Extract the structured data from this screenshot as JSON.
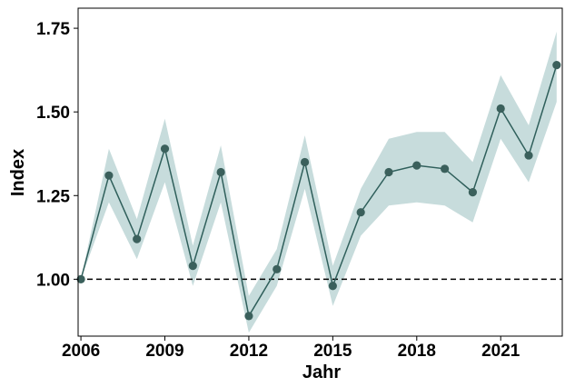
{
  "colors": {
    "line": "#2f5f5b",
    "point": "#3b605c",
    "band": "#c7dcdc",
    "reference_line": "#000000",
    "frame": "#000000",
    "background": "#ffffff"
  },
  "chart_data": {
    "type": "line",
    "xlabel": "Jahr",
    "ylabel": "Index",
    "x_ticks": [
      "2006",
      "2009",
      "2012",
      "2015",
      "2018",
      "2021"
    ],
    "y_ticks": [
      "1.00",
      "1.25",
      "1.50",
      "1.75"
    ],
    "xlim": [
      2005.9,
      2023.2
    ],
    "ylim": [
      0.83,
      1.81
    ],
    "grid": false,
    "reference_line": {
      "y": 1.0,
      "style": "dashed"
    },
    "series": [
      {
        "x": [
          2006,
          2007,
          2008,
          2009,
          2010,
          2011,
          2012,
          2013,
          2014,
          2015,
          2016,
          2017,
          2018,
          2019,
          2020,
          2021,
          2022,
          2023
        ],
        "values": [
          1.0,
          1.31,
          1.12,
          1.39,
          1.04,
          1.32,
          0.89,
          1.03,
          1.35,
          0.98,
          1.2,
          1.32,
          1.34,
          1.33,
          1.26,
          1.51,
          1.37,
          1.64
        ],
        "lower": [
          1.0,
          1.23,
          1.06,
          1.29,
          0.98,
          1.23,
          0.84,
          0.98,
          1.27,
          0.92,
          1.13,
          1.22,
          1.23,
          1.22,
          1.17,
          1.42,
          1.29,
          1.53
        ],
        "upper": [
          1.0,
          1.39,
          1.18,
          1.48,
          1.1,
          1.4,
          0.95,
          1.09,
          1.43,
          1.04,
          1.27,
          1.42,
          1.44,
          1.44,
          1.35,
          1.61,
          1.46,
          1.74
        ]
      }
    ]
  }
}
